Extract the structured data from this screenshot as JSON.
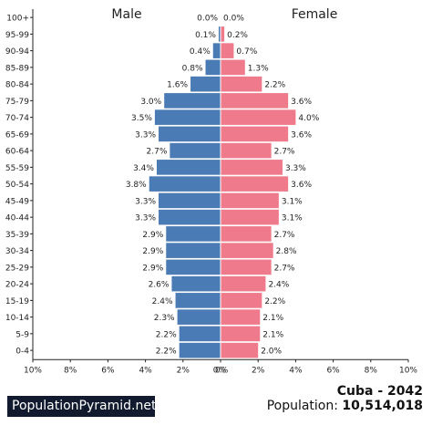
{
  "chart_data": {
    "type": "bar",
    "layout": "population-pyramid",
    "left_label": "Male",
    "right_label": "Female",
    "categories": [
      "100+",
      "95-99",
      "90-94",
      "85-89",
      "80-84",
      "75-79",
      "70-74",
      "65-69",
      "60-64",
      "55-59",
      "50-54",
      "45-49",
      "40-44",
      "35-39",
      "30-34",
      "25-29",
      "20-24",
      "15-19",
      "10-14",
      "5-9",
      "0-4"
    ],
    "series": [
      {
        "name": "Male",
        "color": "#4b7bb4",
        "values": [
          0.0,
          0.1,
          0.4,
          0.8,
          1.6,
          3.0,
          3.5,
          3.3,
          2.7,
          3.4,
          3.8,
          3.3,
          3.3,
          2.9,
          2.9,
          2.9,
          2.6,
          2.4,
          2.3,
          2.2,
          2.2
        ]
      },
      {
        "name": "Female",
        "color": "#ef7a8b",
        "values": [
          0.0,
          0.2,
          0.7,
          1.3,
          2.2,
          3.6,
          4.0,
          3.6,
          2.7,
          3.3,
          3.6,
          3.1,
          3.1,
          2.7,
          2.8,
          2.7,
          2.4,
          2.2,
          2.1,
          2.1,
          2.0
        ]
      }
    ],
    "value_labels": {
      "Male": [
        "0.0%",
        "0.1%",
        "0.4%",
        "0.8%",
        "1.6%",
        "3.0%",
        "3.5%",
        "3.3%",
        "2.7%",
        "3.4%",
        "3.8%",
        "3.3%",
        "3.3%",
        "2.9%",
        "2.9%",
        "2.9%",
        "2.6%",
        "2.4%",
        "2.3%",
        "2.2%",
        "2.2%"
      ],
      "Female": [
        "0.0%",
        "0.2%",
        "0.7%",
        "1.3%",
        "2.2%",
        "3.6%",
        "4.0%",
        "3.6%",
        "2.7%",
        "3.3%",
        "3.6%",
        "3.1%",
        "3.1%",
        "2.7%",
        "2.8%",
        "2.7%",
        "2.4%",
        "2.2%",
        "2.1%",
        "2.1%",
        "2.0%"
      ]
    },
    "x_ticks": [
      "10%",
      "8%",
      "6%",
      "4%",
      "2%",
      "0%",
      "0%",
      "2%",
      "4%",
      "6%",
      "8%",
      "10%"
    ],
    "xlim": [
      -10,
      10
    ],
    "grid": false
  },
  "footer": {
    "brand": "PopulationPyramid.net",
    "country_year": "Cuba - 2042",
    "population_label": "Population:",
    "population_value": "10,514,018"
  }
}
